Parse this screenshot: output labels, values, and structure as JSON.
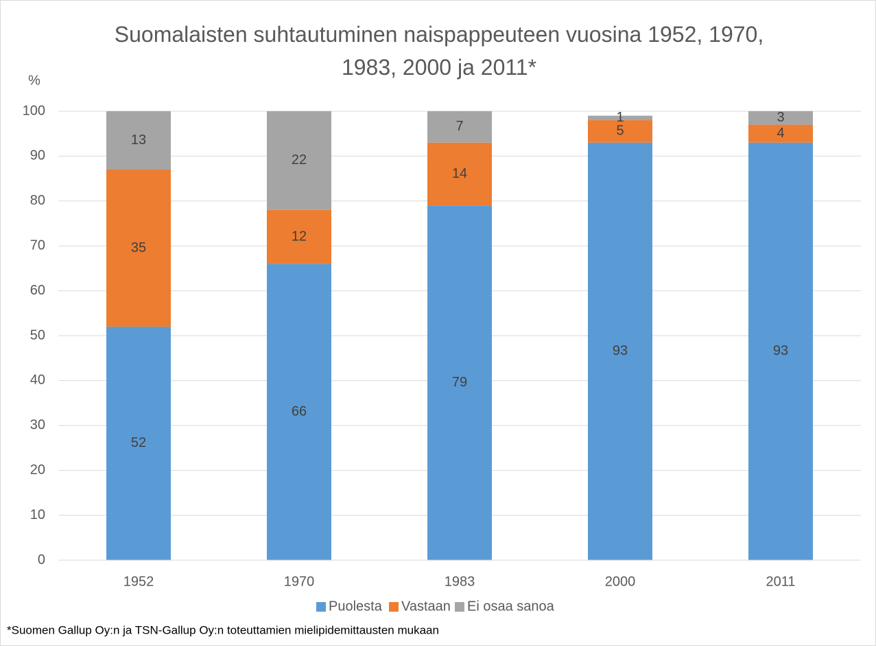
{
  "chart_data": {
    "type": "stacked_bar",
    "title": "Suomalaisten suhtautuminen naispappeuteen vuosina 1952, 1970, 1983, 2000 ja 2011*",
    "y_label": "%",
    "footnote": "*Suomen Gallup Oy:n ja TSN-Gallup Oy:n toteuttamien mielipidemittausten mukaan",
    "categories": [
      "1952",
      "1970",
      "1983",
      "2000",
      "2011"
    ],
    "series": [
      {
        "name": "Puolesta",
        "color": "#5b9bd5",
        "values": [
          52,
          66,
          79,
          93,
          93
        ]
      },
      {
        "name": "Vastaan",
        "color": "#ed7d31",
        "values": [
          35,
          12,
          14,
          5,
          4
        ]
      },
      {
        "name": "Ei osaa sanoa",
        "color": "#a5a5a5",
        "values": [
          13,
          22,
          7,
          1,
          3
        ]
      }
    ],
    "ylim": [
      0,
      100
    ],
    "yticks": [
      0,
      10,
      20,
      30,
      40,
      50,
      60,
      70,
      80,
      90,
      100
    ],
    "grid": true,
    "legend": "bottom"
  }
}
